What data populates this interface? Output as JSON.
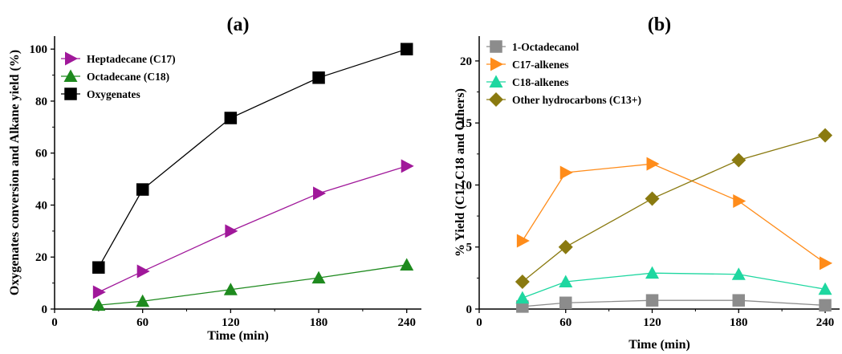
{
  "chart_data": [
    {
      "type": "line",
      "title": "(a)",
      "xlabel": "Time (min)",
      "ylabel": "Oxygenates conversion and Alkane yield (%)",
      "xlim": [
        0,
        250
      ],
      "ylim": [
        0,
        105
      ],
      "xticks": [
        0,
        60,
        120,
        180,
        240
      ],
      "yticks": [
        0,
        20,
        40,
        60,
        80,
        100
      ],
      "grid": false,
      "legend_position": "top-left",
      "x": [
        30,
        60,
        120,
        180,
        240
      ],
      "series": [
        {
          "name": "Heptadecane (C17)",
          "color": "#a0189a",
          "marker": "triangle-right",
          "values": [
            6.5,
            14.5,
            30,
            44.5,
            55
          ]
        },
        {
          "name": "Octadecane (C18)",
          "color": "#1e8a1e",
          "marker": "triangle-up",
          "values": [
            1.5,
            3,
            7.5,
            12,
            17
          ]
        },
        {
          "name": "Oxygenates",
          "color": "#000000",
          "marker": "square",
          "values": [
            16,
            46,
            73.5,
            89,
            100
          ]
        }
      ]
    },
    {
      "type": "line",
      "title": "(b)",
      "xlabel": "Time (min)",
      "ylabel": "% Yield (C17,C18 and Others)",
      "xlim": [
        0,
        250
      ],
      "ylim": [
        0,
        22
      ],
      "xticks": [
        0,
        60,
        120,
        180,
        240
      ],
      "yticks": [
        0,
        5,
        10,
        15,
        20
      ],
      "grid": false,
      "legend_position": "top-left",
      "x": [
        30,
        60,
        120,
        180,
        240
      ],
      "series": [
        {
          "name": "1-Octadecanol",
          "color": "#8c8c8c",
          "marker": "square",
          "values": [
            0.2,
            0.5,
            0.7,
            0.7,
            0.3
          ]
        },
        {
          "name": "C17-alkenes",
          "color": "#ff8c1a",
          "marker": "triangle-right",
          "values": [
            5.5,
            11,
            11.7,
            8.7,
            3.7
          ]
        },
        {
          "name": "C18-alkenes",
          "color": "#1ed7a0",
          "marker": "triangle-up",
          "values": [
            0.9,
            2.2,
            2.9,
            2.8,
            1.6
          ]
        },
        {
          "name": "Other hydrocarbons (C13+)",
          "color": "#8a7a10",
          "marker": "diamond",
          "values": [
            2.2,
            5,
            8.9,
            12,
            14
          ]
        }
      ]
    }
  ]
}
